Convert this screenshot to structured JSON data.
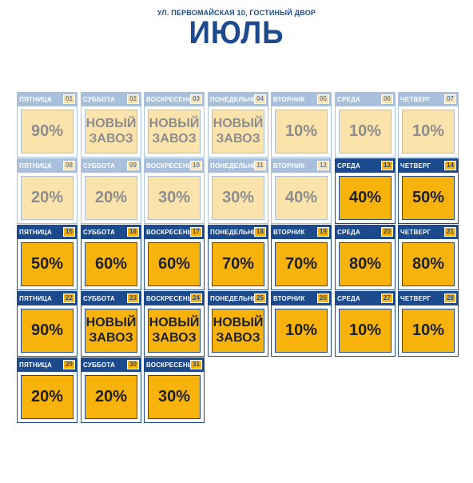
{
  "header": {
    "address": "УЛ. ПЕРВОМАЙСКАЯ 10, ГОСТИНЫЙ ДВОР",
    "month": "ИЮЛЬ"
  },
  "colors": {
    "brand_blue": "#1c4a8c",
    "accent_yellow": "#f7b20b"
  },
  "days": [
    {
      "weekday": "Пятница",
      "date": "01",
      "value": "90%",
      "past": true
    },
    {
      "weekday": "Суббота",
      "date": "02",
      "value": "НОВЫЙ ЗАВОЗ",
      "past": true
    },
    {
      "weekday": "Воскресенье",
      "date": "03",
      "value": "НОВЫЙ ЗАВОЗ",
      "past": true
    },
    {
      "weekday": "Понедельник",
      "date": "04",
      "value": "НОВЫЙ ЗАВОЗ",
      "past": true
    },
    {
      "weekday": "Вторник",
      "date": "05",
      "value": "10%",
      "past": true
    },
    {
      "weekday": "Среда",
      "date": "06",
      "value": "10%",
      "past": true
    },
    {
      "weekday": "Четверг",
      "date": "07",
      "value": "10%",
      "past": true
    },
    {
      "weekday": "Пятница",
      "date": "08",
      "value": "20%",
      "past": true
    },
    {
      "weekday": "Суббота",
      "date": "09",
      "value": "20%",
      "past": true
    },
    {
      "weekday": "Воскресенье",
      "date": "10",
      "value": "30%",
      "past": true
    },
    {
      "weekday": "Понедельник",
      "date": "11",
      "value": "30%",
      "past": true
    },
    {
      "weekday": "Вторник",
      "date": "12",
      "value": "40%",
      "past": true
    },
    {
      "weekday": "Среда",
      "date": "13",
      "value": "40%",
      "past": false
    },
    {
      "weekday": "Четверг",
      "date": "14",
      "value": "50%",
      "past": false
    },
    {
      "weekday": "Пятница",
      "date": "15",
      "value": "50%",
      "past": false
    },
    {
      "weekday": "Суббота",
      "date": "16",
      "value": "60%",
      "past": false
    },
    {
      "weekday": "Воскресенье",
      "date": "17",
      "value": "60%",
      "past": false
    },
    {
      "weekday": "Понедельник",
      "date": "18",
      "value": "70%",
      "past": false
    },
    {
      "weekday": "Вторник",
      "date": "19",
      "value": "70%",
      "past": false
    },
    {
      "weekday": "Среда",
      "date": "20",
      "value": "80%",
      "past": false
    },
    {
      "weekday": "Четверг",
      "date": "21",
      "value": "80%",
      "past": false
    },
    {
      "weekday": "Пятница",
      "date": "22",
      "value": "90%",
      "past": false
    },
    {
      "weekday": "Суббота",
      "date": "23",
      "value": "НОВЫЙ ЗАВОЗ",
      "past": false
    },
    {
      "weekday": "Воскресенье",
      "date": "24",
      "value": "НОВЫЙ ЗАВОЗ",
      "past": false
    },
    {
      "weekday": "Понедельник",
      "date": "25",
      "value": "НОВЫЙ ЗАВОЗ",
      "past": false
    },
    {
      "weekday": "Вторник",
      "date": "26",
      "value": "10%",
      "past": false
    },
    {
      "weekday": "Среда",
      "date": "27",
      "value": "10%",
      "past": false
    },
    {
      "weekday": "Четверг",
      "date": "28",
      "value": "10%",
      "past": false
    },
    {
      "weekday": "Пятница",
      "date": "29",
      "value": "20%",
      "past": false
    },
    {
      "weekday": "Суббота",
      "date": "30",
      "value": "20%",
      "past": false
    },
    {
      "weekday": "Воскресенье",
      "date": "31",
      "value": "30%",
      "past": false
    }
  ]
}
